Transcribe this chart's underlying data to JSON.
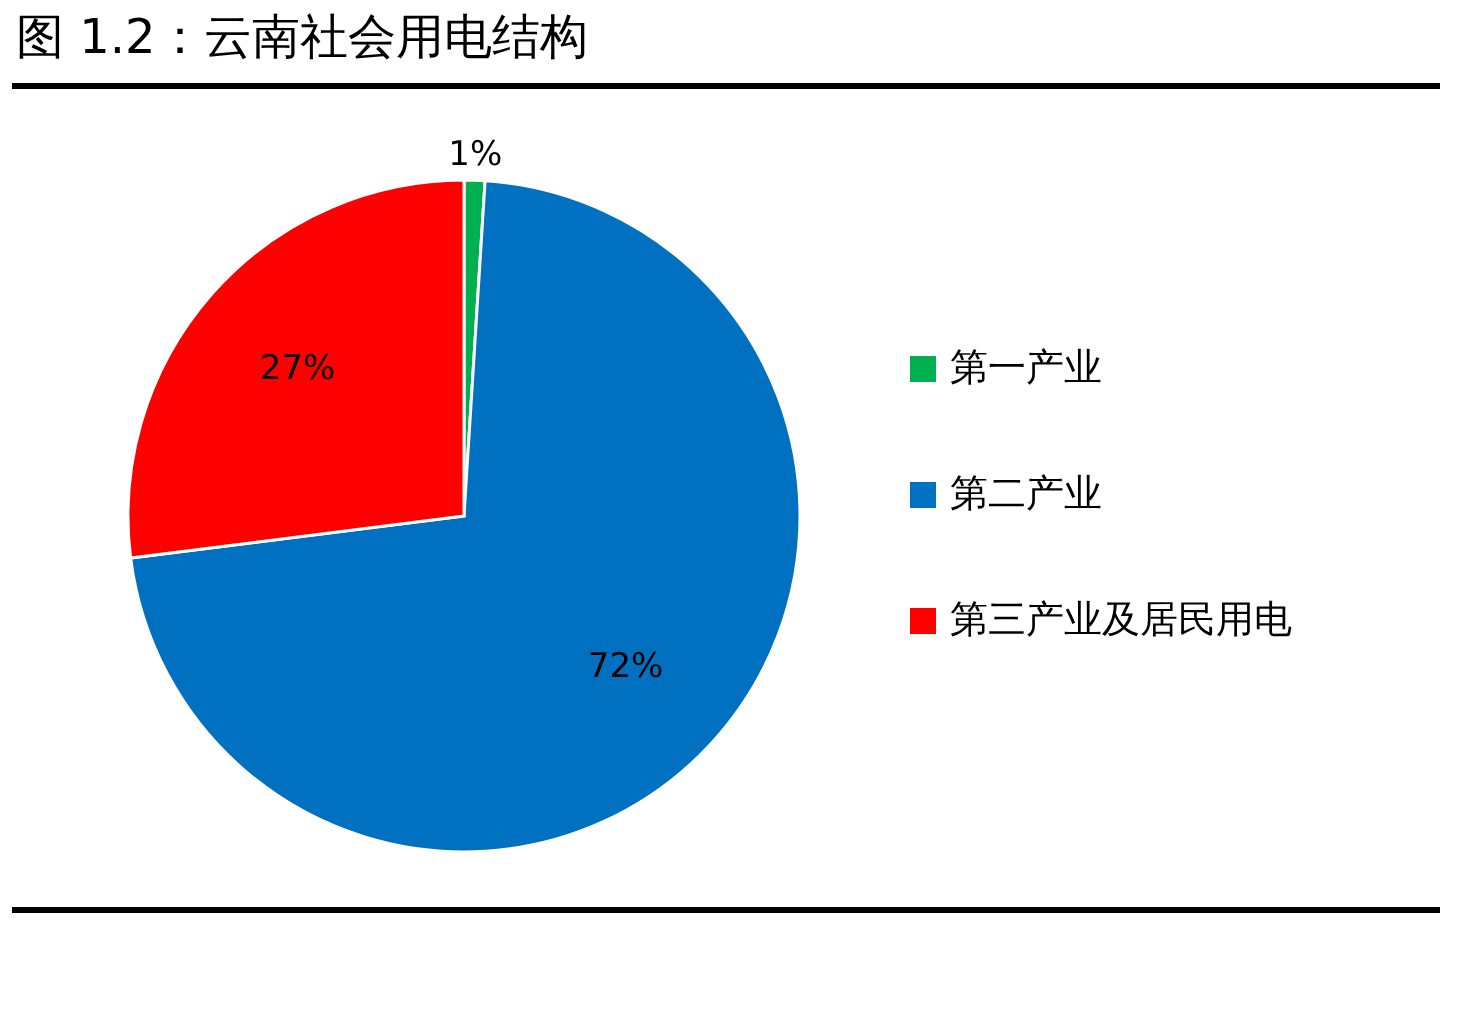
{
  "chart_data": {
    "type": "pie",
    "title": "图 1.2：云南社会用电结构",
    "categories": [
      "第一产业",
      "第二产业",
      "第三产业及居民用电"
    ],
    "values": [
      1,
      72,
      27
    ],
    "colors": [
      "#00b050",
      "#0070c0",
      "#ff0000"
    ],
    "value_labels": [
      "1%",
      "72%",
      "27%"
    ],
    "legend": "right"
  }
}
